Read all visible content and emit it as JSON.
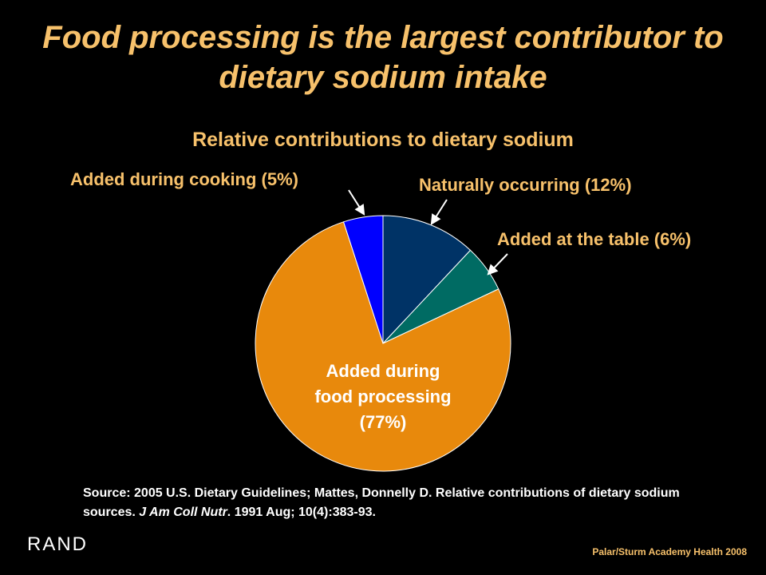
{
  "title": "Food processing is the largest contributor to dietary sodium intake",
  "colors": {
    "title": "#f7c16b",
    "background": "#000000",
    "text": "#ffffff"
  },
  "chart_data": {
    "type": "pie",
    "title": "Relative contributions to dietary sodium",
    "slices": [
      {
        "label": "Naturally occurring (12%)",
        "value": 12,
        "color": "#003366"
      },
      {
        "label": "Added at the table (6%)",
        "value": 6,
        "color": "#006b63"
      },
      {
        "label": "Added during food processing (77%)",
        "value": 77,
        "color": "#e8890c"
      },
      {
        "label": "Added during cooking (5%)",
        "value": 5,
        "color": "#0000ff"
      }
    ],
    "inner_label_lines": [
      "Added during",
      "food processing",
      "(77%)"
    ]
  },
  "source": {
    "prefix": "Source: 2005 U.S. Dietary Guidelines; Mattes, Donnelly D. Relative contributions of dietary sodium sources. ",
    "journal": "J Am Coll Nutr",
    "suffix": ". 1991 Aug; 10(4):383-93."
  },
  "logo": "RAND",
  "credit": "Palar/Sturm Academy Health 2008"
}
